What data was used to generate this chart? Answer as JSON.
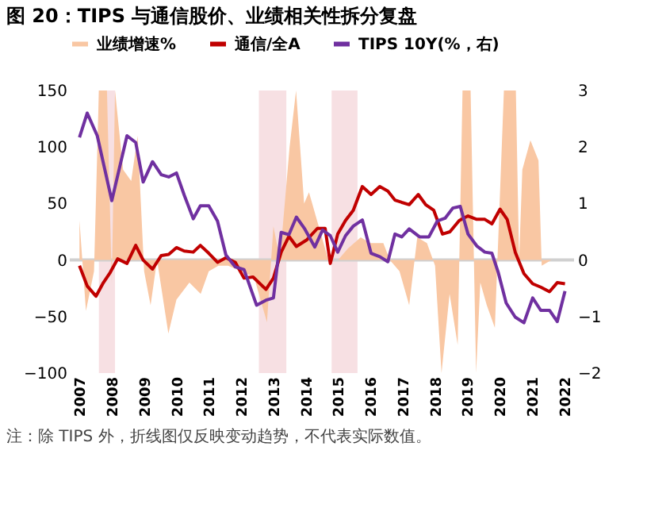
{
  "chart_data": {
    "type": "line",
    "title": "图 20：TIPS 与通信股价、业绩相关性拆分复盘",
    "annotations": [
      "注：除 TIPS 外，折线图仅反映变动趋势，不代表实际数值。"
    ],
    "xlim": [
      2006.7,
      2022.3
    ],
    "xticks": [
      2007,
      2008,
      2009,
      2010,
      2011,
      2012,
      2013,
      2014,
      2015,
      2016,
      2017,
      2018,
      2019,
      2020,
      2021,
      2022
    ],
    "ylim": [
      -100,
      150
    ],
    "yticks": [
      -100,
      -50,
      0,
      50,
      100,
      150
    ],
    "y2lim": [
      -2,
      3
    ],
    "y2ticks": [
      -2,
      -1,
      0,
      1,
      2,
      3
    ],
    "legend": "top",
    "grid": false,
    "bands": [
      {
        "axis": "x",
        "from": 2007.6,
        "to": 2008.1,
        "color": "#f6dde0"
      },
      {
        "axis": "x",
        "from": 2012.55,
        "to": 2013.4,
        "color": "#f6dde0"
      },
      {
        "axis": "x",
        "from": 2014.8,
        "to": 2015.6,
        "color": "#f6dde0"
      }
    ],
    "ref_lines": [
      {
        "axis": "y",
        "value": 0,
        "color": "#d0d0d0"
      }
    ],
    "series": [
      {
        "name": "业绩增速%",
        "type": "area",
        "color": "#f9c7a3",
        "x": [
          2007.0,
          2007.2,
          2007.45,
          2007.6,
          2007.85,
          2008.0,
          2008.1,
          2008.35,
          2008.6,
          2008.8,
          2009.0,
          2009.2,
          2009.4,
          2009.75,
          2010.0,
          2010.4,
          2010.75,
          2011.0,
          2011.3,
          2011.6,
          2012.0,
          2012.4,
          2012.8,
          2013.0,
          2013.2,
          2013.5,
          2013.7,
          2013.95,
          2014.1,
          2014.4,
          2014.7,
          2015.0,
          2015.3,
          2015.7,
          2016.0,
          2016.4,
          2016.6,
          2016.9,
          2017.2,
          2017.45,
          2017.75,
          2018.0,
          2018.2,
          2018.45,
          2018.7,
          2018.85,
          2019.1,
          2019.27,
          2019.4,
          2019.6,
          2019.85,
          2020.13,
          2020.5,
          2020.6,
          2020.7,
          2020.95,
          2021.2,
          2021.3,
          2021.6
        ],
        "values": [
          35,
          -45,
          -10,
          150,
          150,
          -20,
          150,
          80,
          70,
          110,
          -10,
          -40,
          0,
          -65,
          -35,
          -20,
          -30,
          -10,
          -5,
          -5,
          -10,
          -15,
          -55,
          30,
          0,
          100,
          150,
          50,
          60,
          30,
          0,
          0,
          10,
          20,
          15,
          15,
          0,
          -10,
          -40,
          20,
          15,
          -5,
          -100,
          -30,
          -75,
          150,
          150,
          -100,
          -20,
          -40,
          -60,
          150,
          150,
          0,
          80,
          106,
          88,
          -5,
          0
        ]
      },
      {
        "name": "通信/全A",
        "color": "#c00000",
        "x": [
          2007.0,
          2007.24,
          2007.51,
          2007.74,
          2007.95,
          2008.18,
          2008.47,
          2008.74,
          2008.97,
          2009.26,
          2009.53,
          2009.76,
          2010.0,
          2010.24,
          2010.52,
          2010.74,
          2011.0,
          2011.27,
          2011.53,
          2011.82,
          2012.09,
          2012.37,
          2012.77,
          2013.0,
          2013.24,
          2013.48,
          2013.71,
          2014.04,
          2014.36,
          2014.6,
          2014.76,
          2014.99,
          2015.23,
          2015.47,
          2015.75,
          2016.02,
          2016.29,
          2016.54,
          2016.76,
          2016.97,
          2017.2,
          2017.48,
          2017.71,
          2017.96,
          2018.23,
          2018.46,
          2018.75,
          2019.02,
          2019.29,
          2019.54,
          2019.76,
          2020.01,
          2020.23,
          2020.48,
          2020.75,
          2021.02,
          2021.27,
          2021.54,
          2021.78,
          2022.02
        ],
        "values": [
          -5,
          -23,
          -32,
          -20,
          -11,
          1,
          -3,
          13,
          0,
          -8,
          4,
          5,
          11,
          8,
          7,
          13,
          6,
          -2,
          2,
          -2,
          -16,
          -15,
          -26,
          -16,
          7,
          21,
          12,
          18,
          28,
          28,
          -3,
          23,
          35,
          44,
          65,
          58,
          65,
          61,
          53,
          51,
          49,
          58,
          49,
          44,
          23,
          25,
          35,
          39,
          36,
          36,
          32,
          45,
          36,
          7,
          -12,
          -21,
          -24,
          -28,
          -20,
          -21
        ]
      },
      {
        "name": "TIPS 10Y(%，右)",
        "color": "#7030a0",
        "axis": "y2",
        "x": [
          2007.0,
          2007.24,
          2007.55,
          2008.0,
          2008.47,
          2008.74,
          2008.97,
          2009.26,
          2009.53,
          2009.76,
          2010.0,
          2010.24,
          2010.52,
          2010.74,
          2011.0,
          2011.27,
          2011.53,
          2011.82,
          2012.09,
          2012.48,
          2012.77,
          2013.0,
          2013.24,
          2013.48,
          2013.71,
          2013.97,
          2014.28,
          2014.52,
          2014.76,
          2014.99,
          2015.23,
          2015.47,
          2015.75,
          2016.02,
          2016.29,
          2016.54,
          2016.76,
          2016.97,
          2017.2,
          2017.52,
          2017.81,
          2018.07,
          2018.31,
          2018.55,
          2018.78,
          2019.02,
          2019.29,
          2019.54,
          2019.76,
          2019.96,
          2020.2,
          2020.48,
          2020.75,
          2021.02,
          2021.27,
          2021.54,
          2021.78,
          2022.02
        ],
        "values": [
          2.17,
          2.6,
          2.2,
          1.05,
          2.2,
          2.08,
          1.38,
          1.74,
          1.51,
          1.47,
          1.54,
          1.15,
          0.73,
          0.96,
          0.96,
          0.69,
          0.09,
          -0.12,
          -0.17,
          -0.8,
          -0.71,
          -0.67,
          0.49,
          0.45,
          0.76,
          0.55,
          0.23,
          0.53,
          0.43,
          0.14,
          0.43,
          0.6,
          0.71,
          0.12,
          0.06,
          -0.03,
          0.46,
          0.41,
          0.55,
          0.41,
          0.41,
          0.69,
          0.74,
          0.92,
          0.95,
          0.46,
          0.25,
          0.14,
          0.12,
          -0.23,
          -0.76,
          -1.01,
          -1.11,
          -0.67,
          -0.89,
          -0.89,
          -1.09,
          -0.55
        ]
      }
    ]
  }
}
